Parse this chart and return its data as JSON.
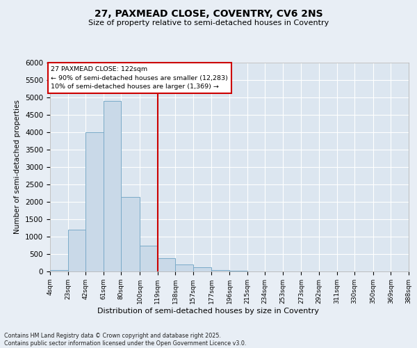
{
  "title1": "27, PAXMEAD CLOSE, COVENTRY, CV6 2NS",
  "title2": "Size of property relative to semi-detached houses in Coventry",
  "xlabel": "Distribution of semi-detached houses by size in Coventry",
  "ylabel": "Number of semi-detached properties",
  "footnote1": "Contains HM Land Registry data © Crown copyright and database right 2025.",
  "footnote2": "Contains public sector information licensed under the Open Government Licence v3.0.",
  "annotation_title": "27 PAXMEAD CLOSE: 122sqm",
  "annotation_line1": "← 90% of semi-detached houses are smaller (12,283)",
  "annotation_line2": "10% of semi-detached houses are larger (1,369) →",
  "vline_position": 119,
  "bin_labels": [
    "4sqm",
    "23sqm",
    "42sqm",
    "61sqm",
    "80sqm",
    "100sqm",
    "119sqm",
    "138sqm",
    "157sqm",
    "177sqm",
    "196sqm",
    "215sqm",
    "234sqm",
    "253sqm",
    "273sqm",
    "292sqm",
    "311sqm",
    "330sqm",
    "350sqm",
    "369sqm",
    "388sqm"
  ],
  "bin_edges": [
    4,
    23,
    42,
    61,
    80,
    100,
    119,
    138,
    157,
    177,
    196,
    215,
    234,
    253,
    273,
    292,
    311,
    330,
    350,
    369,
    388
  ],
  "bar_heights": [
    50,
    1200,
    4000,
    4900,
    2150,
    750,
    380,
    200,
    120,
    50,
    20,
    10,
    5,
    3,
    2,
    1,
    1,
    0,
    0,
    0
  ],
  "bar_color": "#c9d9e8",
  "bar_edgecolor": "#7aaac8",
  "vline_color": "#cc0000",
  "bg_color": "#dce6f0",
  "fig_bg_color": "#e8eef5",
  "grid_color": "#ffffff",
  "ylim": [
    0,
    6000
  ],
  "yticks": [
    0,
    500,
    1000,
    1500,
    2000,
    2500,
    3000,
    3500,
    4000,
    4500,
    5000,
    5500,
    6000
  ]
}
